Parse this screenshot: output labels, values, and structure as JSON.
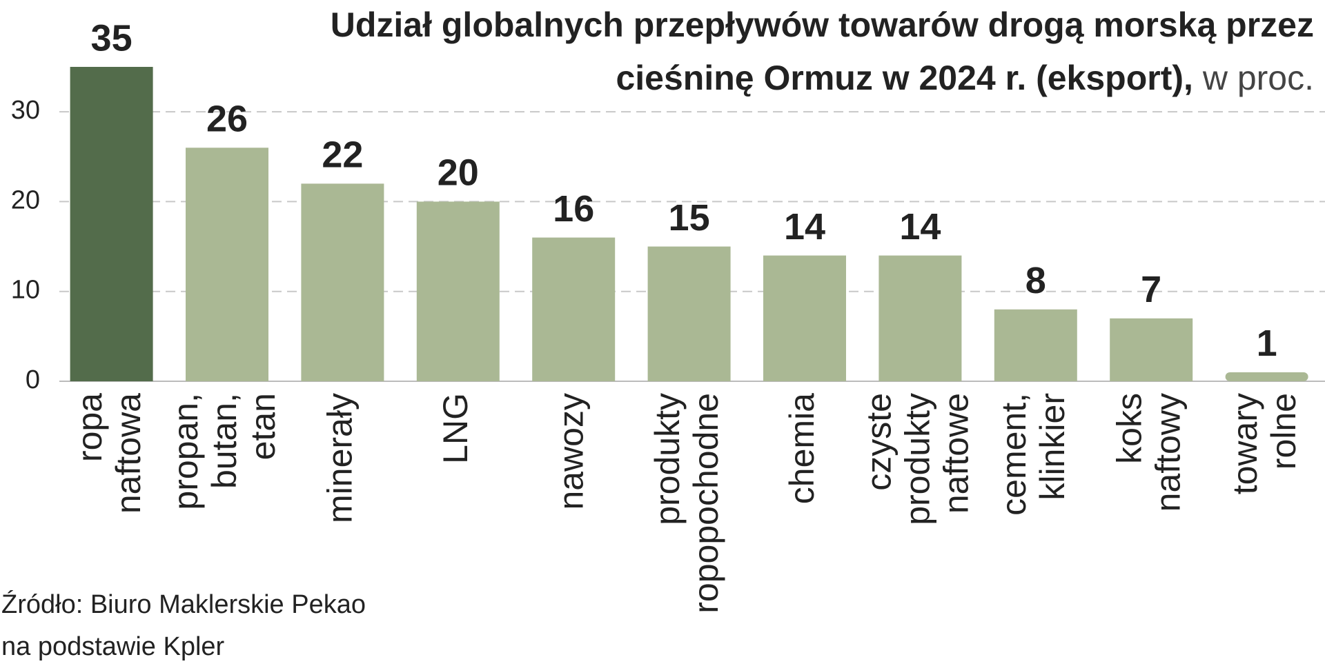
{
  "chart_data": {
    "type": "bar",
    "title": [
      "Udział globalnych przepływów towarów drogą morską przez",
      "cieśninę Ormuz w 2024 r. (eksport),"
    ],
    "subtitle": "w proc.",
    "categories": [
      [
        "ropa",
        "naftowa"
      ],
      [
        "propan,",
        "butan,",
        "etan"
      ],
      [
        "minerały"
      ],
      [
        "LNG"
      ],
      [
        "nawozy"
      ],
      [
        "produkty",
        "ropopochodne"
      ],
      [
        "chemia"
      ],
      [
        "czyste",
        "produkty",
        "naftowe"
      ],
      [
        "cement,",
        "klinkier"
      ],
      [
        "koks",
        "naftowy"
      ],
      [
        "towary",
        "rolne"
      ]
    ],
    "values": [
      35,
      26,
      22,
      20,
      16,
      15,
      14,
      14,
      8,
      7,
      1
    ],
    "colors": [
      "#536c4b",
      "#aab894",
      "#aab894",
      "#aab894",
      "#aab894",
      "#aab894",
      "#aab894",
      "#aab894",
      "#aab894",
      "#aab894",
      "#aab894"
    ],
    "ylim": [
      0,
      35
    ],
    "yticks": [
      0,
      10,
      20,
      30
    ],
    "grid": true,
    "source": [
      "Źródło: Biuro Maklerskie Pekao",
      "na podstawie Kpler"
    ]
  }
}
